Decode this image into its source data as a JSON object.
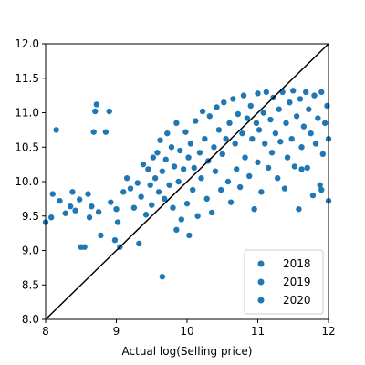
{
  "chart_data": {
    "type": "scatter",
    "xlabel": "Actual log(Selling price)",
    "ylabel": "",
    "xlim": [
      8,
      12
    ],
    "ylim": [
      8,
      12
    ],
    "xticks": [
      "8",
      "9",
      "10",
      "11",
      "12"
    ],
    "yticks": [
      "8.0",
      "8.5",
      "9.0",
      "9.5",
      "10.0",
      "10.5",
      "11.0",
      "11.5",
      "12.0"
    ],
    "grid": false,
    "legend_position": "lower-right",
    "reference_line": {
      "from": [
        8,
        8
      ],
      "to": [
        12,
        12
      ],
      "color": "#000000"
    },
    "point_color": "#1f77b4",
    "series": [
      {
        "name": "2018",
        "color": "#1f77b4",
        "points": [
          [
            8.0,
            9.41
          ],
          [
            8.08,
            9.48
          ],
          [
            8.1,
            9.82
          ],
          [
            8.15,
            10.75
          ],
          [
            8.2,
            9.72
          ],
          [
            8.28,
            9.54
          ],
          [
            8.35,
            9.64
          ],
          [
            8.38,
            9.85
          ],
          [
            8.42,
            9.58
          ],
          [
            8.48,
            9.74
          ],
          [
            8.5,
            9.05
          ],
          [
            8.55,
            9.05
          ],
          [
            8.6,
            9.82
          ],
          [
            8.62,
            9.48
          ],
          [
            8.65,
            9.64
          ],
          [
            8.68,
            10.72
          ],
          [
            8.7,
            11.02
          ],
          [
            8.72,
            11.12
          ],
          [
            8.75,
            9.56
          ],
          [
            8.78,
            9.22
          ],
          [
            8.85,
            10.72
          ],
          [
            8.9,
            11.02
          ],
          [
            8.92,
            9.7
          ],
          [
            8.98,
            9.15
          ],
          [
            9.0,
            9.6
          ],
          [
            9.02,
            9.41
          ],
          [
            9.05,
            9.05
          ],
          [
            9.1,
            9.85
          ],
          [
            9.15,
            10.05
          ],
          [
            9.2,
            9.9
          ],
          [
            9.25,
            9.62
          ],
          [
            9.3,
            9.98
          ],
          [
            9.32,
            9.1
          ],
          [
            9.35,
            9.78
          ],
          [
            9.38,
            10.25
          ],
          [
            9.42,
            9.52
          ],
          [
            9.45,
            10.18
          ],
          [
            9.48,
            9.95
          ],
          [
            9.5,
            9.66
          ],
          [
            9.52,
            10.35
          ],
          [
            9.55,
            10.05
          ],
          [
            9.58,
            10.42
          ],
          [
            9.6,
            9.85
          ],
          [
            9.62,
            10.6
          ],
          [
            9.65,
            10.15
          ],
          [
            9.65,
            8.62
          ],
          [
            9.68,
            9.75
          ],
          [
            9.7,
            10.32
          ],
          [
            9.72,
            10.7
          ],
          [
            9.75,
            9.95
          ],
          [
            9.78,
            10.5
          ],
          [
            9.8,
            9.62
          ],
          [
            9.82,
            10.22
          ],
          [
            9.85,
            10.85
          ],
          [
            9.85,
            9.3
          ],
          [
            9.88,
            10.0
          ],
          [
            9.9,
            10.45
          ],
          [
            9.92,
            9.45
          ],
          [
            9.95,
            10.18
          ],
          [
            9.98,
            10.72
          ],
          [
            10.0,
            9.68
          ],
          [
            10.02,
            10.35
          ],
          [
            10.03,
            9.22
          ]
        ]
      },
      {
        "name": "2019",
        "color": "#1f77b4",
        "points": [
          [
            10.05,
            10.55
          ],
          [
            10.08,
            9.88
          ],
          [
            10.1,
            10.2
          ],
          [
            10.12,
            10.88
          ],
          [
            10.15,
            9.5
          ],
          [
            10.18,
            10.42
          ],
          [
            10.2,
            10.05
          ],
          [
            10.22,
            11.02
          ],
          [
            10.25,
            10.62
          ],
          [
            10.28,
            9.75
          ],
          [
            10.3,
            10.3
          ],
          [
            10.32,
            10.95
          ],
          [
            10.35,
            9.55
          ],
          [
            10.38,
            10.5
          ],
          [
            10.4,
            10.15
          ],
          [
            10.42,
            11.08
          ],
          [
            10.45,
            10.75
          ],
          [
            10.48,
            9.88
          ],
          [
            10.5,
            10.4
          ],
          [
            10.52,
            11.15
          ],
          [
            10.55,
            10.62
          ],
          [
            10.58,
            10.0
          ],
          [
            10.6,
            10.85
          ],
          [
            10.62,
            9.7
          ],
          [
            10.65,
            11.2
          ],
          [
            10.68,
            10.55
          ],
          [
            10.7,
            10.18
          ],
          [
            10.72,
            10.98
          ],
          [
            10.75,
            9.92
          ],
          [
            10.78,
            10.7
          ],
          [
            10.8,
            11.25
          ],
          [
            10.82,
            10.35
          ],
          [
            10.85,
            10.92
          ],
          [
            10.88,
            10.08
          ],
          [
            10.9,
            11.1
          ],
          [
            10.92,
            10.62
          ],
          [
            10.95,
            9.6
          ],
          [
            10.98,
            10.85
          ],
          [
            11.0,
            11.28
          ],
          [
            11.0,
            10.28
          ],
          [
            11.02,
            10.75
          ],
          [
            11.05,
            9.85
          ],
          [
            11.08,
            11.0
          ],
          [
            11.1,
            10.55
          ],
          [
            11.12,
            11.3
          ],
          [
            11.15,
            10.2
          ],
          [
            11.18,
            10.9
          ],
          [
            11.2,
            10.42
          ]
        ]
      },
      {
        "name": "2020",
        "color": "#1f77b4",
        "points": [
          [
            11.22,
            11.22
          ],
          [
            11.25,
            10.7
          ],
          [
            11.28,
            10.05
          ],
          [
            11.3,
            11.05
          ],
          [
            11.32,
            10.58
          ],
          [
            11.35,
            11.3
          ],
          [
            11.38,
            9.9
          ],
          [
            11.4,
            10.85
          ],
          [
            11.42,
            10.35
          ],
          [
            11.45,
            11.15
          ],
          [
            11.48,
            10.62
          ],
          [
            11.5,
            11.32
          ],
          [
            11.52,
            10.22
          ],
          [
            11.55,
            10.95
          ],
          [
            11.58,
            9.6
          ],
          [
            11.6,
            11.2
          ],
          [
            11.62,
            10.5
          ],
          [
            11.65,
            10.8
          ],
          [
            11.68,
            11.3
          ],
          [
            11.7,
            10.2
          ],
          [
            11.72,
            11.05
          ],
          [
            11.75,
            10.7
          ],
          [
            11.78,
            9.8
          ],
          [
            11.8,
            11.25
          ],
          [
            11.82,
            10.55
          ],
          [
            11.85,
            10.92
          ],
          [
            11.88,
            9.95
          ],
          [
            11.9,
            11.3
          ],
          [
            11.92,
            10.4
          ],
          [
            11.95,
            10.85
          ],
          [
            11.98,
            11.1
          ],
          [
            12.0,
            10.62
          ],
          [
            12.0,
            9.72
          ],
          [
            11.9,
            9.88
          ],
          [
            11.62,
            10.18
          ]
        ]
      }
    ]
  }
}
